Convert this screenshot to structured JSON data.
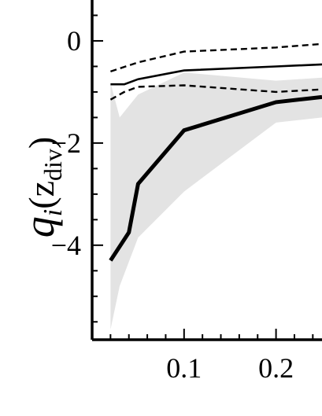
{
  "chart_data": {
    "type": "line",
    "ylabel": {
      "symbol": "q",
      "subscript": "i",
      "argument": "(z",
      "argument_sub": "div",
      "close": ")"
    },
    "xlabel": "",
    "xlim": [
      0.0,
      0.25
    ],
    "ylim": [
      -5.85,
      0.8
    ],
    "x_ticks": [
      0.1,
      0.2
    ],
    "x_tick_labels": [
      "0.1",
      "0.2"
    ],
    "y_ticks": [
      0,
      -2,
      -4
    ],
    "y_tick_labels": [
      "0",
      "−2",
      "−4"
    ],
    "grid": false,
    "series": [
      {
        "style": "thick-solid",
        "x": [
          0.02,
          0.04,
          0.05,
          0.1,
          0.2,
          0.25
        ],
        "y": [
          -4.3,
          -3.75,
          -2.8,
          -1.75,
          -1.2,
          -1.1
        ]
      },
      {
        "style": "thin-solid",
        "x": [
          0.02,
          0.035,
          0.05,
          0.1,
          0.2,
          0.25
        ],
        "y": [
          -0.85,
          -0.85,
          -0.75,
          -0.58,
          -0.5,
          -0.46
        ]
      },
      {
        "style": "dashed-upper",
        "x": [
          0.02,
          0.05,
          0.1,
          0.2,
          0.25
        ],
        "y": [
          -0.6,
          -0.42,
          -0.21,
          -0.13,
          -0.06
        ]
      },
      {
        "style": "dashed-lower",
        "x": [
          0.02,
          0.035,
          0.05,
          0.1,
          0.2,
          0.25
        ],
        "y": [
          -1.15,
          -1.0,
          -0.9,
          -0.87,
          -1.0,
          -0.95
        ]
      }
    ],
    "band": {
      "color": "#e3e3e3",
      "x": [
        0.02,
        0.03,
        0.05,
        0.1,
        0.2,
        0.25
      ],
      "upper": [
        -0.82,
        -1.5,
        -1.05,
        -0.62,
        -0.78,
        -0.72
      ],
      "lower": [
        -5.65,
        -4.8,
        -3.85,
        -2.95,
        -1.6,
        -1.5
      ]
    }
  }
}
